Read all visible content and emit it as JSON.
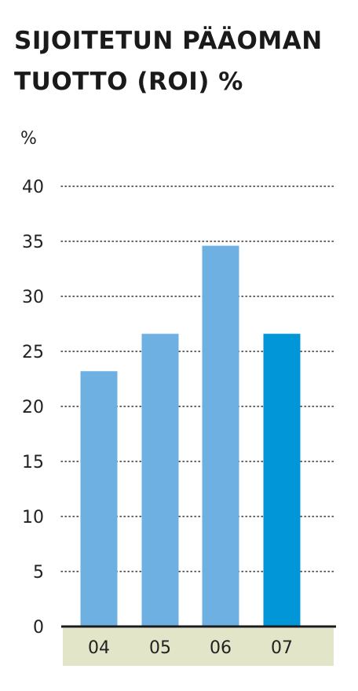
{
  "title_lines": [
    "SIJOITETUN PÄÄOMAN",
    "TUOTTO (ROI) %"
  ],
  "colors": {
    "bar": "#6fb0e2",
    "bar_highlight": "#0096d8",
    "axis_band": "#e2e5c8",
    "grid": "#333333",
    "text": "#222222"
  },
  "chart_data": {
    "type": "bar",
    "title": "SIJOITETUN PÄÄOMAN TUOTTO (ROI) %",
    "ylabel": "%",
    "xlabel": "",
    "categories": [
      "04",
      "05",
      "06",
      "07"
    ],
    "values": [
      23.2,
      26.6,
      34.6,
      26.6
    ],
    "highlight_index": 3,
    "ylim": [
      0,
      40
    ],
    "yticks": [
      0,
      5,
      10,
      15,
      20,
      25,
      30,
      35,
      40
    ],
    "grid": true,
    "grid_style": "dotted"
  }
}
